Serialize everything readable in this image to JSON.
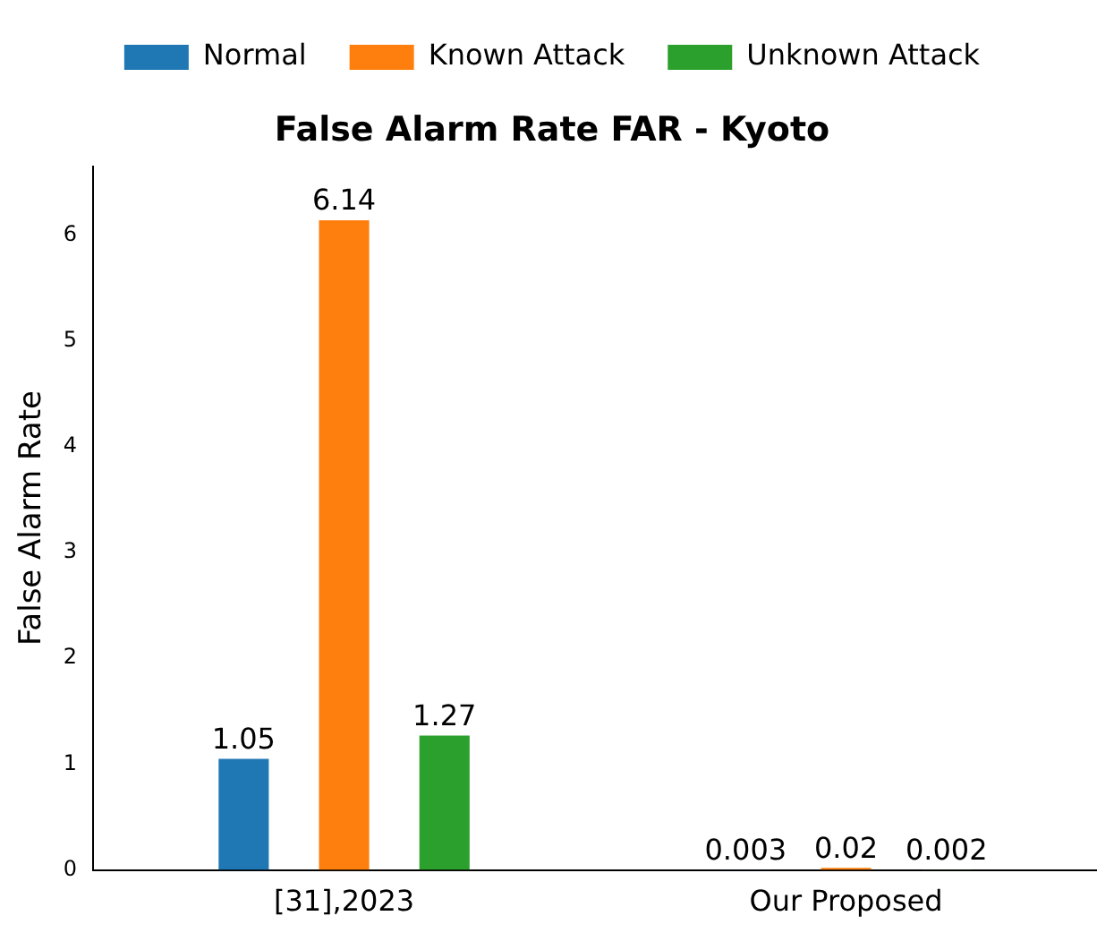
{
  "chart_data": {
    "type": "bar",
    "title": "False Alarm Rate FAR - Kyoto",
    "ylabel": "False Alarm Rate",
    "categories": [
      "[31],2023",
      "Our Proposed"
    ],
    "series": [
      {
        "name": "Normal",
        "color": "#1f77b4",
        "values": [
          1.05,
          0.003
        ]
      },
      {
        "name": "Known Attack",
        "color": "#ff7f0e",
        "values": [
          6.14,
          0.02
        ]
      },
      {
        "name": "Unknown Attack",
        "color": "#2ca02c",
        "values": [
          1.27,
          0.002
        ]
      }
    ],
    "ylim": [
      0,
      6.65
    ],
    "yticks": [
      0,
      1,
      2,
      3,
      4,
      5,
      6
    ],
    "grid": false,
    "legend": "top",
    "data_labels": true
  }
}
